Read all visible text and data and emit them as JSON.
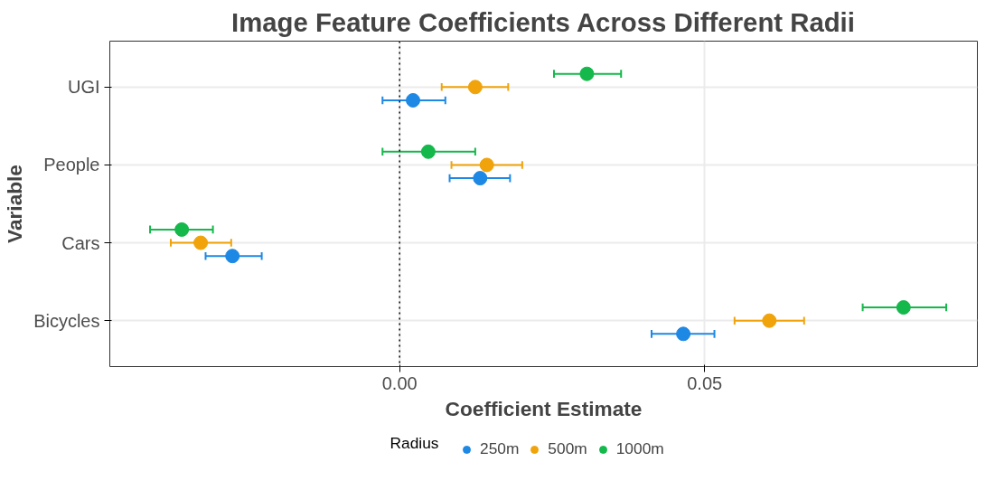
{
  "chart_data": {
    "type": "scatter",
    "orientation": "horizontal",
    "title": "Image Feature Coefficients Across Different Radii",
    "xlabel": "Coefficient Estimate",
    "ylabel": "Variable",
    "legend_title": "Radius",
    "categories": [
      "UGI",
      "People",
      "Cars",
      "Bicycles"
    ],
    "series": [
      {
        "name": "250m",
        "color": "#1e88e5",
        "values": [
          0.0022,
          0.0132,
          -0.0274,
          0.0465
        ],
        "errors": [
          [
            -0.0028,
            0.0075
          ],
          [
            0.0082,
            0.0181
          ],
          [
            -0.0318,
            -0.0226
          ],
          [
            0.0413,
            0.0516
          ]
        ]
      },
      {
        "name": "500m",
        "color": "#f0a30a",
        "values": [
          0.0124,
          0.0143,
          -0.0326,
          0.0606
        ],
        "errors": [
          [
            0.0069,
            0.0178
          ],
          [
            0.0085,
            0.0201
          ],
          [
            -0.0375,
            -0.0276
          ],
          [
            0.0549,
            0.0663
          ]
        ]
      },
      {
        "name": "1000m",
        "color": "#14b84b",
        "values": [
          0.0307,
          0.0047,
          -0.0357,
          0.0826
        ],
        "errors": [
          [
            0.0253,
            0.0363
          ],
          [
            -0.0028,
            0.0124
          ],
          [
            -0.0409,
            -0.0306
          ],
          [
            0.0759,
            0.0896
          ]
        ]
      }
    ],
    "xlim": [
      -0.0475,
      0.0947
    ],
    "xticks": [
      {
        "value": 0,
        "label": "0.00"
      },
      0.05
    ],
    "ref_lines": [
      {
        "axis": "x",
        "value": 0,
        "line_style": "dotted",
        "color": "#000000"
      }
    ],
    "grid": true,
    "legend": "bottom",
    "marker": "circle"
  }
}
